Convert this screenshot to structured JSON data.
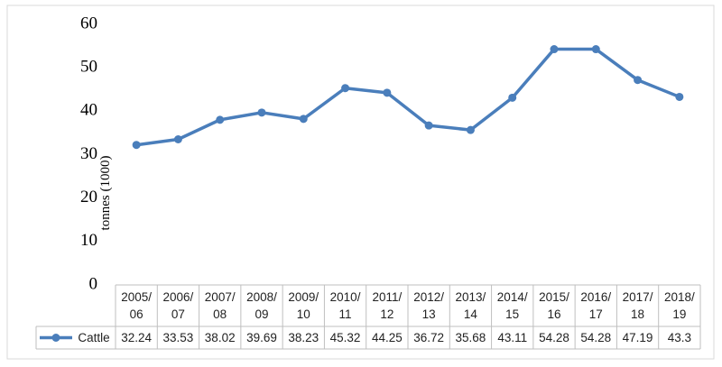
{
  "chart_data": {
    "type": "line",
    "y_label": "tonnes (1000)",
    "categories": [
      "2005/\n06",
      "2006/\n07",
      "2007/\n08",
      "2008/\n09",
      "2009/\n10",
      "2010/\n11",
      "2011/\n12",
      "2012/\n13",
      "2013/\n14",
      "2014/\n15",
      "2015/\n16",
      "2016/\n17",
      "2017/\n18",
      "2018/\n19"
    ],
    "series": [
      {
        "name": "Cattle",
        "color": "#4a7ebb",
        "values": [
          32.24,
          33.53,
          38.02,
          39.69,
          38.23,
          45.32,
          44.25,
          36.72,
          35.68,
          43.11,
          54.28,
          54.28,
          47.19,
          43.3
        ]
      }
    ],
    "ylim": [
      0,
      60
    ],
    "yticks": [
      0,
      10,
      20,
      30,
      40,
      50,
      60
    ],
    "grid": false
  }
}
